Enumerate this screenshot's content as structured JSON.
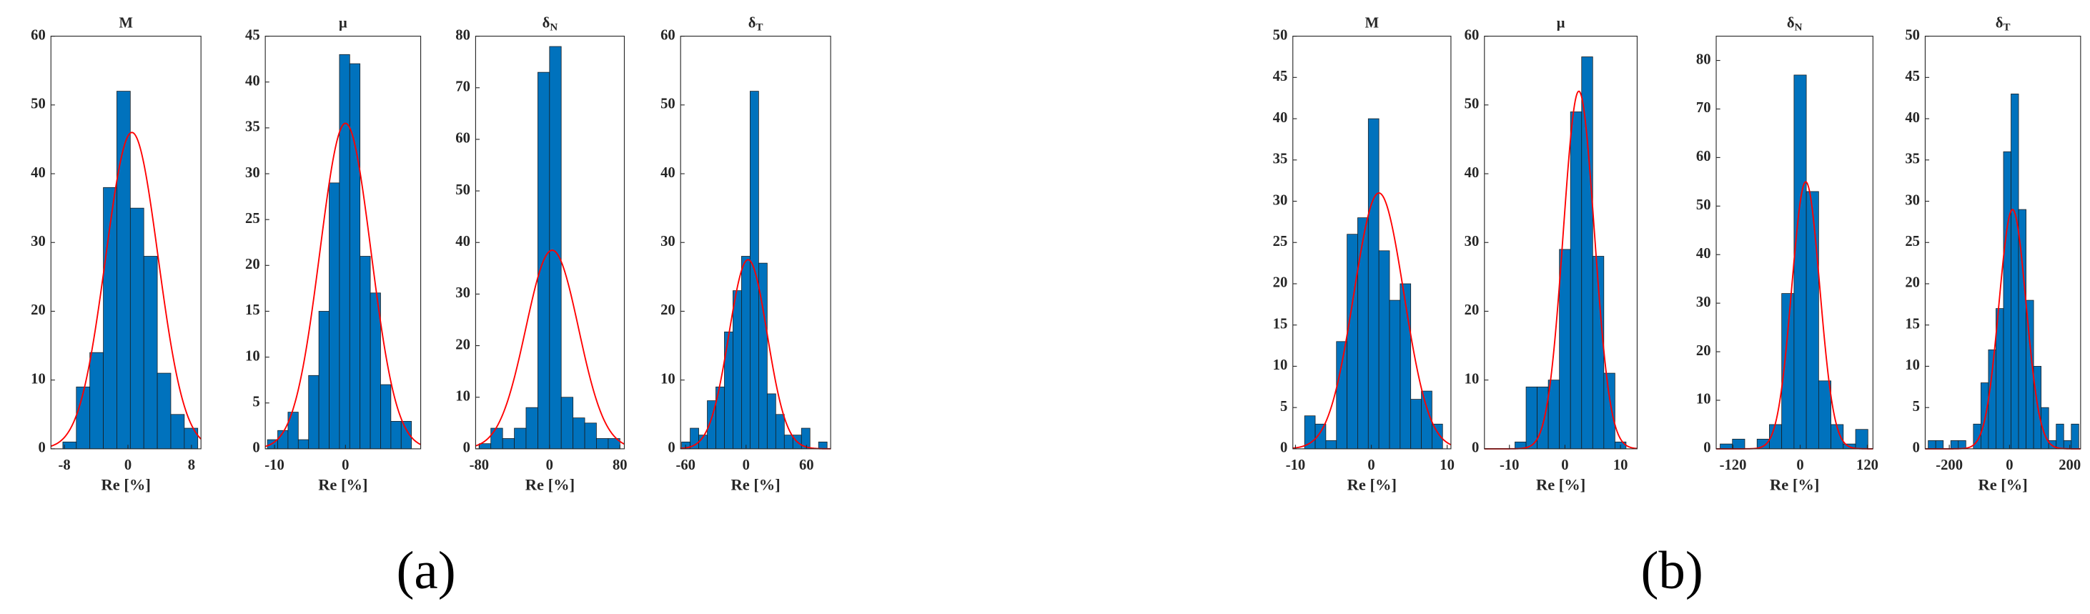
{
  "chart_data": [
    {
      "type": "histogram",
      "title": "M",
      "xlabel": "Re [%]",
      "color": "#0072bd",
      "bins": [
        -8.2,
        -6.5,
        -4.8,
        -3.1,
        -1.4,
        0.3,
        2,
        3.7,
        5.4,
        7.1,
        8.8
      ],
      "counts": [
        1,
        9,
        14,
        38,
        52,
        35,
        28,
        11,
        5,
        3
      ],
      "xlim": [
        -9.7,
        9.2
      ],
      "xticks": [
        -8,
        0,
        8
      ],
      "ylim": [
        0,
        60
      ],
      "yticks": [
        0,
        10,
        20,
        30,
        40,
        50,
        60
      ],
      "fit": {
        "color": "#ff0000",
        "mean": 0.5,
        "sd": 3.3,
        "peak": 46
      }
    },
    {
      "type": "histogram",
      "title": "μ",
      "xlabel": "Re [%]",
      "color": "#0072bd",
      "bins": [
        -11,
        -9.55,
        -8.1,
        -6.65,
        -5.2,
        -3.75,
        -2.3,
        -0.85,
        0.6,
        2.05,
        3.5,
        4.95,
        6.4,
        7.85,
        9.3
      ],
      "counts": [
        1,
        2,
        4,
        1,
        8,
        15,
        29,
        43,
        42,
        21,
        17,
        7,
        3,
        3
      ],
      "xlim": [
        -11.3,
        10.6
      ],
      "xticks": [
        -10,
        0
      ],
      "ylim": [
        0,
        45
      ],
      "yticks": [
        0,
        5,
        10,
        15,
        20,
        25,
        30,
        35,
        40,
        45
      ],
      "fit": {
        "color": "#ff0000",
        "mean": 0,
        "sd": 3.6,
        "peak": 35.5
      }
    },
    {
      "type": "histogram",
      "title": "δ",
      "subscript": "N",
      "xlabel": "Re [%]",
      "color": "#0072bd",
      "bins": [
        -80,
        -66.7,
        -53.3,
        -40,
        -26.7,
        -13.3,
        0,
        13.3,
        26.7,
        40,
        53.3,
        66.7,
        80
      ],
      "counts": [
        1,
        4,
        2,
        4,
        8,
        73,
        78,
        10,
        6,
        5,
        2,
        2
      ],
      "xlim": [
        -84,
        85
      ],
      "xticks": [
        -80,
        0,
        80
      ],
      "ylim": [
        0,
        80
      ],
      "yticks": [
        0,
        10,
        20,
        30,
        40,
        50,
        60,
        70,
        80
      ],
      "fit": {
        "color": "#ff0000",
        "mean": 3,
        "sd": 30,
        "peak": 38.5
      }
    },
    {
      "type": "histogram",
      "title": "δ",
      "subscript": "T",
      "xlabel": "Re [%]",
      "color": "#0072bd",
      "bins": [
        -64,
        -55.5,
        -47,
        -38.5,
        -30,
        -21.5,
        -13,
        -4.5,
        4,
        12.5,
        21,
        29.5,
        38,
        46.5,
        55,
        63.5,
        72,
        80.5
      ],
      "counts": [
        1,
        3,
        2,
        7,
        9,
        17,
        23,
        28,
        52,
        27,
        8,
        5,
        2,
        2,
        3,
        0,
        1
      ],
      "xlim": [
        -65,
        84
      ],
      "xticks": [
        -60,
        0,
        60
      ],
      "ylim": [
        0,
        60
      ],
      "yticks": [
        0,
        10,
        20,
        30,
        40,
        50,
        60
      ],
      "fit": {
        "color": "#ff0000",
        "mean": 2,
        "sd": 19,
        "peak": 27.5
      }
    },
    {
      "type": "histogram",
      "title": "M",
      "xlabel": "Re [%]",
      "color": "#0072bd",
      "bins": [
        -8.8,
        -7.4,
        -6,
        -4.6,
        -3.2,
        -1.8,
        -0.4,
        1,
        2.4,
        3.8,
        5.2,
        6.6,
        8,
        9.4
      ],
      "counts": [
        4,
        3,
        1,
        13,
        26,
        28,
        40,
        24,
        18,
        20,
        6,
        7,
        3
      ],
      "xlim": [
        -10.35,
        10.5
      ],
      "xticks": [
        -10,
        0,
        10
      ],
      "ylim": [
        0,
        50
      ],
      "yticks": [
        0,
        5,
        10,
        15,
        20,
        25,
        30,
        35,
        40,
        45,
        50
      ],
      "fit": {
        "color": "#ff0000",
        "mean": 1,
        "sd": 3.3,
        "peak": 31
      }
    },
    {
      "type": "histogram",
      "title": "μ",
      "xlabel": "Re [%]",
      "color": "#0072bd",
      "bins": [
        -9,
        -7,
        -5,
        -3,
        -1,
        1,
        3,
        5,
        7,
        9,
        11
      ],
      "counts": [
        1,
        9,
        9,
        10,
        29,
        49,
        57,
        28,
        11,
        1
      ],
      "xlim": [
        -14.5,
        13
      ],
      "xticks": [
        -10,
        0,
        10
      ],
      "ylim": [
        0,
        60
      ],
      "yticks": [
        0,
        10,
        20,
        30,
        40,
        50,
        60
      ],
      "fit": {
        "color": "#ff0000",
        "mean": 2.5,
        "sd": 2.8,
        "peak": 52
      }
    },
    {
      "type": "histogram",
      "title": "δ",
      "subscript": "N",
      "xlabel": "Re [%]",
      "color": "#0072bd",
      "bins": [
        -143,
        -121,
        -99,
        -77,
        -55,
        -33,
        -11,
        11,
        33,
        55,
        77,
        99,
        121
      ],
      "counts": [
        1,
        2,
        0,
        2,
        5,
        32,
        77,
        53,
        14,
        5,
        1,
        4
      ],
      "xlim": [
        -150,
        130
      ],
      "xticks": [
        -120,
        0,
        120
      ],
      "ylim": [
        0,
        85
      ],
      "yticks": [
        0,
        10,
        20,
        30,
        40,
        50,
        60,
        70,
        80
      ],
      "fit": {
        "color": "#ff0000",
        "mean": 10,
        "sd": 25,
        "peak": 55
      }
    },
    {
      "type": "histogram",
      "title": "δ",
      "subscript": "T",
      "xlabel": "Re [%]",
      "color": "#0072bd",
      "bins": [
        -270,
        -245,
        -220,
        -195,
        -170,
        -145,
        -120,
        -95,
        -70,
        -45,
        -20,
        5,
        30,
        55,
        80,
        105,
        130,
        155,
        180,
        205,
        230
      ],
      "counts": [
        1,
        1,
        0,
        1,
        1,
        0,
        3,
        8,
        12,
        17,
        36,
        43,
        29,
        18,
        10,
        5,
        1,
        3,
        1,
        3
      ],
      "xlim": [
        -280,
        236
      ],
      "xticks": [
        -200,
        0,
        200
      ],
      "ylim": [
        0,
        50
      ],
      "yticks": [
        0,
        5,
        10,
        15,
        20,
        25,
        30,
        35,
        40,
        45,
        50
      ],
      "fit": {
        "color": "#ff0000",
        "mean": 10,
        "sd": 45,
        "peak": 29
      }
    }
  ],
  "panel_labels": [
    "(a)",
    "(b)"
  ]
}
